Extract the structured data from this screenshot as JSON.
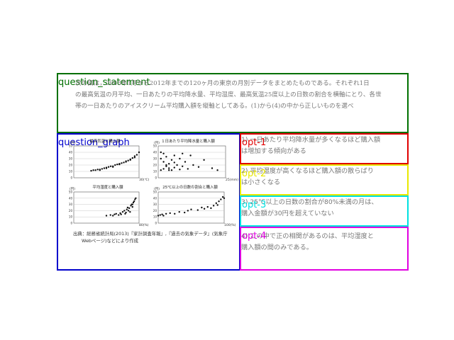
{
  "labels": {
    "question_statement": "question_statement",
    "question_graph": "question_graph",
    "opt1": "opt-1",
    "opt2": "opt-2",
    "opt3": "opt-3",
    "opt4": "opt-4"
  },
  "colors": {
    "question_statement": "#007000",
    "question_graph": "#0000cc",
    "opt1": "#e00000",
    "opt2": "#e8e800",
    "opt3": "#00e0e0",
    "opt4": "#e000e0"
  },
  "question": {
    "line1": "次の図は，2003年1月から2012年までの120ヶ月の東京の月別データをまとめたものである。それぞれ1日",
    "line2": "の最高気温の月平均、一日あたりの平均降水量、平均湿度、最高気温25度以上の日数の割合を横軸にとり、各世",
    "line3": "帯の一日あたりのアイスクリーム平均購入額を縦軸としてある。(1)から(4)の中から正しいものを選べ"
  },
  "graph": {
    "chart1_title": "最高気温と購入額",
    "chart2_title": "１日あたり平均降水量と購入額",
    "chart3_title": "平均湿度と購入額",
    "chart4_title": "25℃以上の日数の割合と購入額",
    "yunit": "(円)",
    "x1_unit": "30(℃)",
    "x2_unit": "25(mm)",
    "x3_unit": "80(%)",
    "x4_unit": "100(%)",
    "source_line1": "出典：総務省統計局(2013)『家計調査年報』,『過去の気象データ』(気象庁",
    "source_line2": "Webページ)などにより作成"
  },
  "options": {
    "opt1_line1": "1) 一日あたり平均降水量が多くなるほど購入額",
    "opt1_line2": "は増加する傾向がある",
    "opt2_line1": "2) 平均湿度が高くなるほど購入額の散らばり",
    "opt2_line2": "は小さくなる",
    "opt3_line1": "3) 25℃以上の日数の割合が80%未満の月は、",
    "opt3_line2": "購入金額が30円を超えていない",
    "opt4_line1": "4) この中で正の相関があるのは、平均湿度と",
    "opt4_line2": "購入額の間のみである。"
  },
  "chart_data": [
    {
      "type": "scatter",
      "title": "最高気温と購入額",
      "ylabel": "(円)",
      "xlim": [
        0,
        30
      ],
      "ylim": [
        0,
        50
      ],
      "points": [
        [
          8,
          11
        ],
        [
          9,
          12
        ],
        [
          10,
          12
        ],
        [
          11,
          13
        ],
        [
          12,
          13
        ],
        [
          13,
          14
        ],
        [
          14,
          15
        ],
        [
          15,
          15
        ],
        [
          16,
          17
        ],
        [
          17,
          18
        ],
        [
          18,
          18
        ],
        [
          19,
          20
        ],
        [
          20,
          21
        ],
        [
          21,
          22
        ],
        [
          22,
          23
        ],
        [
          23,
          24
        ],
        [
          24,
          25
        ],
        [
          25,
          27
        ],
        [
          26,
          29
        ],
        [
          27,
          31
        ],
        [
          28,
          34
        ],
        [
          29,
          36
        ],
        [
          30,
          40
        ],
        [
          12,
          12
        ],
        [
          15,
          16
        ],
        [
          18,
          17
        ],
        [
          21,
          21
        ],
        [
          24,
          26
        ],
        [
          26,
          28
        ],
        [
          28,
          32
        ]
      ]
    },
    {
      "type": "scatter",
      "title": "１日あたり平均降水量と購入額",
      "ylabel": "(円)",
      "xlim": [
        0,
        25
      ],
      "ylim": [
        0,
        50
      ],
      "points": [
        [
          1,
          40
        ],
        [
          2,
          38
        ],
        [
          1,
          30
        ],
        [
          2,
          25
        ],
        [
          3,
          20
        ],
        [
          4,
          15
        ],
        [
          1,
          12
        ],
        [
          2,
          14
        ],
        [
          3,
          18
        ],
        [
          4,
          22
        ],
        [
          5,
          28
        ],
        [
          5,
          12
        ],
        [
          6,
          16
        ],
        [
          6,
          24
        ],
        [
          7,
          20
        ],
        [
          8,
          13
        ],
        [
          8,
          30
        ],
        [
          9,
          18
        ],
        [
          10,
          25
        ],
        [
          11,
          14
        ],
        [
          12,
          35
        ],
        [
          13,
          20
        ],
        [
          15,
          17
        ],
        [
          17,
          28
        ],
        [
          20,
          15
        ],
        [
          22,
          12
        ],
        [
          3,
          33
        ],
        [
          6,
          35
        ],
        [
          9,
          38
        ],
        [
          4,
          12
        ]
      ]
    },
    {
      "type": "scatter",
      "title": "平均湿度と購入額",
      "ylabel": "(円)",
      "xlim": [
        0,
        80
      ],
      "ylim": [
        0,
        50
      ],
      "points": [
        [
          40,
          12
        ],
        [
          45,
          13
        ],
        [
          48,
          12
        ],
        [
          50,
          14
        ],
        [
          52,
          15
        ],
        [
          55,
          13
        ],
        [
          57,
          16
        ],
        [
          60,
          18
        ],
        [
          62,
          20
        ],
        [
          64,
          17
        ],
        [
          65,
          22
        ],
        [
          66,
          25
        ],
        [
          68,
          24
        ],
        [
          70,
          28
        ],
        [
          71,
          30
        ],
        [
          72,
          26
        ],
        [
          73,
          33
        ],
        [
          74,
          35
        ],
        [
          75,
          38
        ],
        [
          76,
          40
        ],
        [
          58,
          14
        ],
        [
          63,
          15
        ],
        [
          67,
          20
        ],
        [
          69,
          18
        ],
        [
          72,
          30
        ]
      ]
    },
    {
      "type": "scatter",
      "title": "25℃以上の日数の割合と購入額",
      "ylabel": "(円)",
      "xlim": [
        0,
        100
      ],
      "ylim": [
        0,
        50
      ],
      "points": [
        [
          0,
          12
        ],
        [
          3,
          13
        ],
        [
          6,
          14
        ],
        [
          8,
          12
        ],
        [
          12,
          15
        ],
        [
          18,
          16
        ],
        [
          25,
          15
        ],
        [
          32,
          18
        ],
        [
          40,
          17
        ],
        [
          45,
          20
        ],
        [
          50,
          22
        ],
        [
          60,
          21
        ],
        [
          66,
          25
        ],
        [
          75,
          26
        ],
        [
          80,
          24
        ],
        [
          84,
          28
        ],
        [
          88,
          32
        ],
        [
          92,
          35
        ],
        [
          95,
          38
        ],
        [
          98,
          42
        ],
        [
          100,
          40
        ],
        [
          90,
          29
        ],
        [
          70,
          23
        ]
      ]
    }
  ]
}
